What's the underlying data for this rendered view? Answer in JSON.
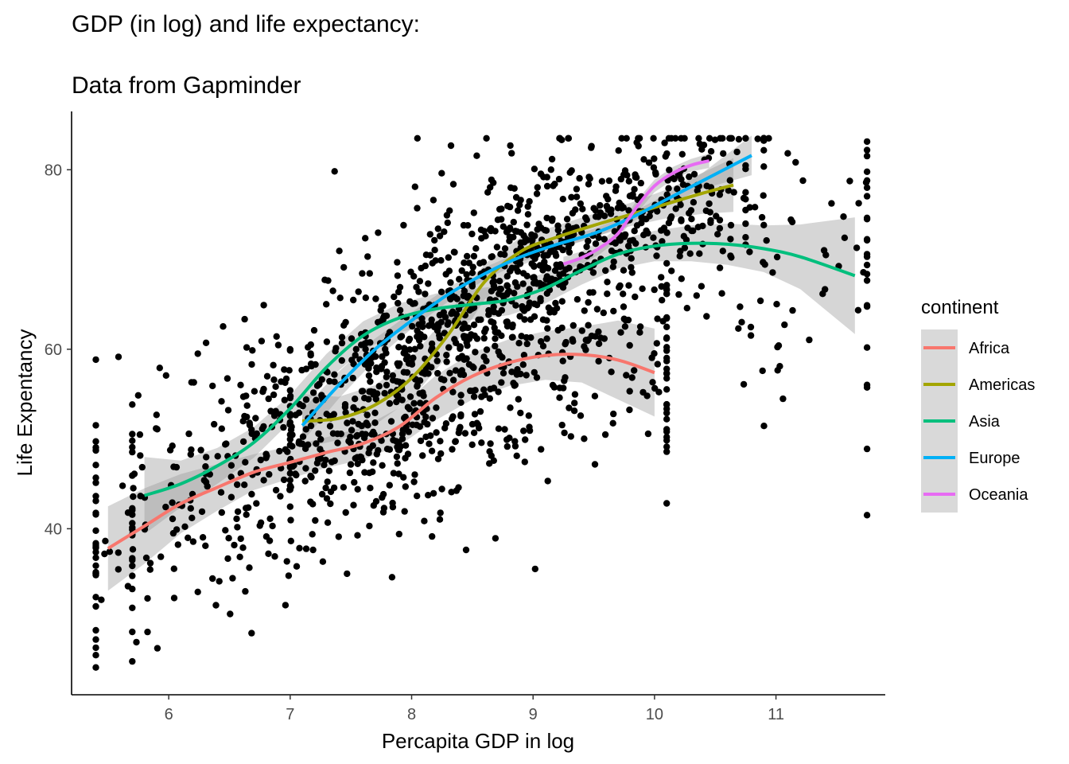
{
  "chart_data": {
    "type": "scatter",
    "title": "GDP (in log) and life expectancy:",
    "subtitle": "Data from Gapminder",
    "xlabel": "Percapita GDP in log",
    "ylabel": "Life Expentancy",
    "xlim": [
      5.2,
      11.9
    ],
    "ylim": [
      21.5,
      86.5
    ],
    "x_ticks": [
      6,
      7,
      8,
      9,
      10,
      11
    ],
    "y_ticks": [
      40,
      60,
      80
    ],
    "grid": false,
    "point_color": "#000000",
    "legend": {
      "title": "continent",
      "placement": "right",
      "background": "#d9d9d9"
    },
    "series": [
      {
        "name": "Africa",
        "color": "#F8766D",
        "x": [
          5.5,
          5.8,
          6.1,
          6.4,
          6.7,
          7.0,
          7.3,
          7.6,
          7.9,
          8.2,
          8.5,
          8.8,
          9.1,
          9.4,
          9.7,
          10.0
        ],
        "y": [
          37.8,
          40.3,
          42.8,
          44.6,
          46.3,
          47.4,
          48.5,
          49.5,
          51.4,
          54.6,
          57.0,
          58.5,
          59.3,
          59.4,
          58.8,
          57.4
        ],
        "band": [
          4.7,
          4.2,
          3.3,
          2.6,
          2.0,
          1.8,
          1.7,
          1.8,
          2.1,
          2.5,
          2.6,
          2.6,
          2.7,
          3.1,
          4.4,
          4.9
        ]
      },
      {
        "name": "Americas",
        "color": "#A3A500",
        "x": [
          7.1,
          7.4,
          7.7,
          8.0,
          8.3,
          8.6,
          8.9,
          9.2,
          9.5,
          9.8,
          10.1,
          10.4,
          10.65
        ],
        "y": [
          52.0,
          52.3,
          53.8,
          56.8,
          61.6,
          67.5,
          70.9,
          72.5,
          73.8,
          75.0,
          76.2,
          77.4,
          78.3
        ],
        "band": [
          3.0,
          2.4,
          2.2,
          2.3,
          2.3,
          2.0,
          1.6,
          1.3,
          1.3,
          1.3,
          1.6,
          2.3,
          3.0
        ]
      },
      {
        "name": "Asia",
        "color": "#00BF7D",
        "x": [
          5.8,
          6.1,
          6.4,
          6.7,
          7.0,
          7.3,
          7.6,
          7.9,
          8.2,
          8.5,
          8.8,
          9.1,
          9.4,
          9.7,
          10.0,
          10.3,
          10.6,
          10.9,
          11.2,
          11.65
        ],
        "y": [
          43.7,
          45.0,
          47.0,
          49.6,
          53.4,
          58.0,
          61.5,
          63.5,
          64.5,
          65.0,
          65.5,
          66.8,
          68.8,
          70.6,
          71.5,
          71.8,
          71.7,
          71.2,
          70.3,
          68.2
        ],
        "band": [
          4.3,
          2.6,
          2.0,
          1.7,
          1.5,
          1.5,
          1.6,
          1.6,
          1.7,
          1.7,
          1.7,
          1.7,
          1.6,
          1.6,
          1.7,
          2.0,
          2.3,
          2.6,
          3.6,
          6.5
        ]
      },
      {
        "name": "Europe",
        "color": "#00B0F6",
        "x": [
          7.1,
          7.4,
          7.7,
          8.0,
          8.3,
          8.6,
          8.9,
          9.2,
          9.5,
          9.8,
          10.1,
          10.4,
          10.8
        ],
        "y": [
          51.5,
          56.0,
          60.0,
          63.2,
          66.1,
          68.4,
          70.3,
          71.7,
          72.9,
          74.6,
          76.7,
          78.8,
          81.6
        ],
        "band": [
          1.8,
          1.5,
          1.2,
          0.9,
          0.8,
          0.7,
          0.6,
          0.5,
          0.5,
          0.5,
          0.6,
          0.9,
          2.2
        ]
      },
      {
        "name": "Oceania",
        "color": "#E76BF3",
        "x": [
          9.25,
          9.4,
          9.55,
          9.7,
          9.85,
          10.0,
          10.15,
          10.3,
          10.45
        ],
        "y": [
          69.5,
          70.2,
          71.3,
          72.9,
          75.8,
          78.2,
          79.6,
          80.5,
          81.0
        ],
        "band": [
          0.8,
          0.7,
          0.7,
          0.7,
          0.7,
          0.7,
          0.7,
          0.7,
          0.8
        ]
      }
    ]
  }
}
